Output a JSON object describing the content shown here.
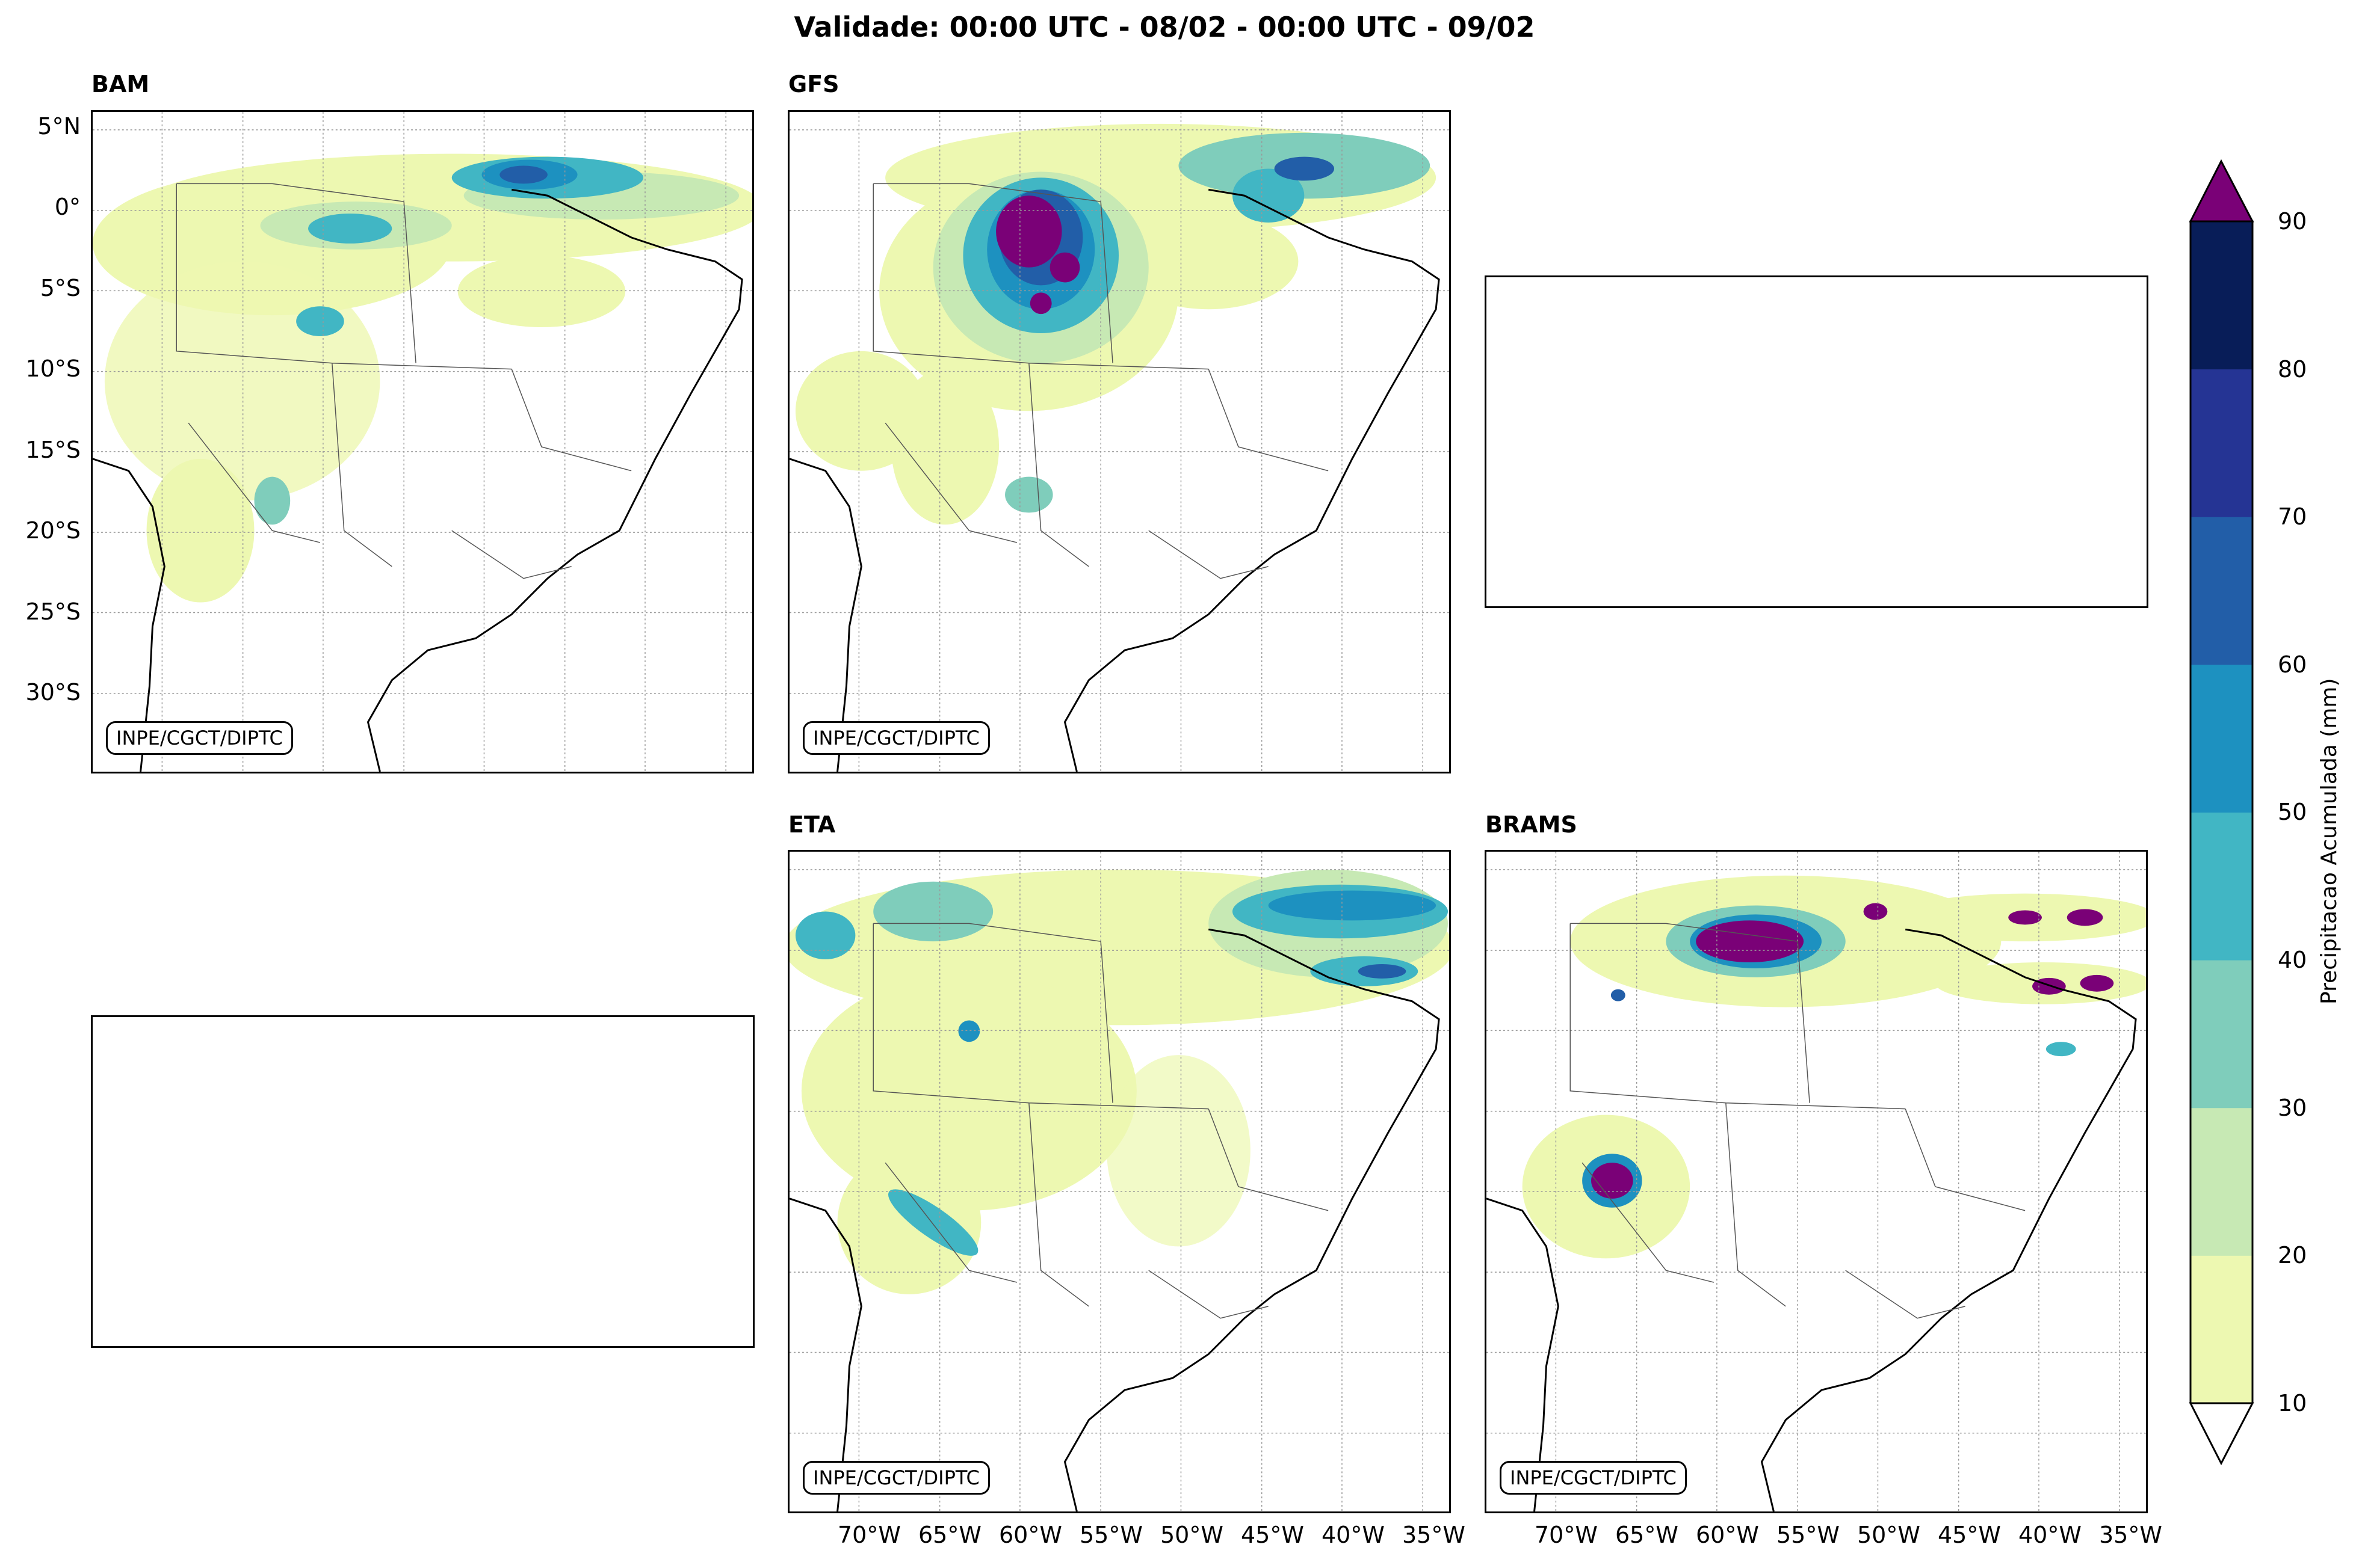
{
  "figure": {
    "title": "Validade: 00:00 UTC - 08/02 - 00:00 UTC - 09/02"
  },
  "panels": {
    "bam": {
      "title": "BAM",
      "credit": "INPE/CGCT/DIPTC"
    },
    "gfs": {
      "title": "GFS",
      "credit": "INPE/CGCT/DIPTC"
    },
    "eta": {
      "title": "ETA",
      "credit": "INPE/CGCT/DIPTC"
    },
    "brams": {
      "title": "BRAMS",
      "credit": "INPE/CGCT/DIPTC"
    }
  },
  "axes": {
    "lat_labels": [
      "5°N",
      "0°",
      "5°S",
      "10°S",
      "15°S",
      "20°S",
      "25°S",
      "30°S"
    ],
    "lon_labels": [
      "70°W",
      "65°W",
      "60°W",
      "55°W",
      "50°W",
      "45°W",
      "40°W",
      "35°W"
    ]
  },
  "colorbar": {
    "label": "Precipitacao Acumulada (mm)",
    "ticks": [
      "10",
      "20",
      "30",
      "40",
      "50",
      "60",
      "70",
      "80",
      "90"
    ],
    "colors": [
      "#edf8b1",
      "#c7e9b4",
      "#7fcdbb",
      "#41b6c4",
      "#1d91c0",
      "#225ea8",
      "#253494",
      "#081d58"
    ],
    "over_color": "#7a0177",
    "under_color": "#ffffff"
  }
}
